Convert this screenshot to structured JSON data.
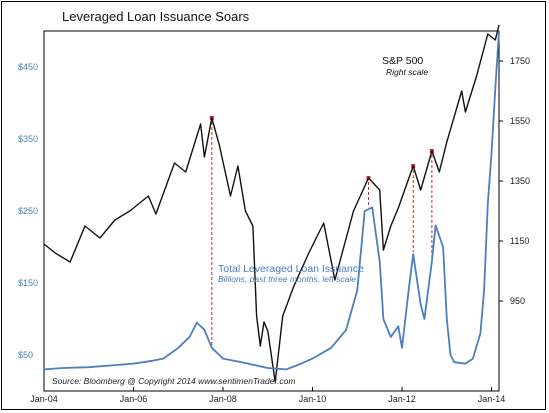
{
  "chart_data": {
    "type": "line",
    "title": "Leveraged Loan Issuance Soars",
    "x_tick_labels": [
      "Jan-04",
      "Jan-06",
      "Jan-08",
      "Jan-10",
      "Jan-12",
      "Jan-14"
    ],
    "x_range": [
      "2004-01",
      "2014-03"
    ],
    "left_axis": {
      "range": [
        0,
        500
      ],
      "ticks": [
        50,
        150,
        250,
        350,
        450
      ],
      "tick_labels": [
        "$50",
        "$150",
        "$250",
        "$350",
        "$450"
      ]
    },
    "right_axis": {
      "range": [
        650,
        1850
      ],
      "ticks": [
        950,
        1150,
        1350,
        1550,
        1750
      ],
      "tick_labels": [
        "950",
        "1150",
        "1350",
        "1550",
        "1750"
      ]
    },
    "series": [
      {
        "name": "S&P 500",
        "note": "Right scale",
        "axis": "right",
        "color": "#111111",
        "points": [
          [
            "2004-01",
            1140
          ],
          [
            "2004-04",
            1110
          ],
          [
            "2004-08",
            1080
          ],
          [
            "2004-12",
            1200
          ],
          [
            "2005-04",
            1160
          ],
          [
            "2005-08",
            1220
          ],
          [
            "2005-12",
            1250
          ],
          [
            "2006-05",
            1300
          ],
          [
            "2006-07",
            1240
          ],
          [
            "2006-12",
            1410
          ],
          [
            "2007-03",
            1380
          ],
          [
            "2007-07",
            1540
          ],
          [
            "2007-08",
            1430
          ],
          [
            "2007-10",
            1560
          ],
          [
            "2007-12",
            1470
          ],
          [
            "2008-03",
            1300
          ],
          [
            "2008-05",
            1400
          ],
          [
            "2008-07",
            1250
          ],
          [
            "2008-09",
            1200
          ],
          [
            "2008-10",
            900
          ],
          [
            "2008-11",
            800
          ],
          [
            "2008-12",
            880
          ],
          [
            "2009-01",
            850
          ],
          [
            "2009-03",
            680
          ],
          [
            "2009-05",
            900
          ],
          [
            "2009-08",
            1000
          ],
          [
            "2009-12",
            1110
          ],
          [
            "2010-04",
            1210
          ],
          [
            "2010-07",
            1020
          ],
          [
            "2010-12",
            1250
          ],
          [
            "2011-04",
            1360
          ],
          [
            "2011-07",
            1320
          ],
          [
            "2011-08",
            1120
          ],
          [
            "2011-10",
            1200
          ],
          [
            "2011-12",
            1260
          ],
          [
            "2012-04",
            1400
          ],
          [
            "2012-06",
            1320
          ],
          [
            "2012-09",
            1450
          ],
          [
            "2012-11",
            1380
          ],
          [
            "2013-01",
            1480
          ],
          [
            "2013-05",
            1650
          ],
          [
            "2013-06",
            1580
          ],
          [
            "2013-09",
            1700
          ],
          [
            "2013-12",
            1840
          ],
          [
            "2014-02",
            1820
          ],
          [
            "2014-03",
            1870
          ]
        ]
      },
      {
        "name": "Total Leveraged Loan Issuance",
        "note": "Billions, past three months, left scale",
        "axis": "left",
        "color": "#4a7fbf",
        "points": [
          [
            "2004-01",
            30
          ],
          [
            "2004-06",
            32
          ],
          [
            "2005-01",
            33
          ],
          [
            "2005-08",
            36
          ],
          [
            "2006-01",
            38
          ],
          [
            "2006-06",
            42
          ],
          [
            "2006-09",
            45
          ],
          [
            "2007-01",
            60
          ],
          [
            "2007-04",
            75
          ],
          [
            "2007-06",
            95
          ],
          [
            "2007-08",
            85
          ],
          [
            "2007-10",
            60
          ],
          [
            "2008-01",
            45
          ],
          [
            "2008-06",
            40
          ],
          [
            "2009-01",
            32
          ],
          [
            "2009-06",
            30
          ],
          [
            "2009-10",
            38
          ],
          [
            "2010-01",
            45
          ],
          [
            "2010-06",
            60
          ],
          [
            "2010-10",
            85
          ],
          [
            "2011-01",
            140
          ],
          [
            "2011-03",
            250
          ],
          [
            "2011-05",
            255
          ],
          [
            "2011-07",
            180
          ],
          [
            "2011-08",
            100
          ],
          [
            "2011-10",
            75
          ],
          [
            "2011-12",
            90
          ],
          [
            "2012-01",
            60
          ],
          [
            "2012-03",
            150
          ],
          [
            "2012-04",
            190
          ],
          [
            "2012-06",
            120
          ],
          [
            "2012-07",
            100
          ],
          [
            "2012-09",
            180
          ],
          [
            "2012-10",
            230
          ],
          [
            "2012-12",
            200
          ],
          [
            "2013-01",
            100
          ],
          [
            "2013-02",
            50
          ],
          [
            "2013-03",
            40
          ],
          [
            "2013-06",
            38
          ],
          [
            "2013-08",
            45
          ],
          [
            "2013-10",
            80
          ],
          [
            "2013-11",
            140
          ],
          [
            "2013-12",
            260
          ],
          [
            "2014-01",
            330
          ],
          [
            "2014-02",
            420
          ],
          [
            "2014-03",
            500
          ]
        ]
      }
    ],
    "peaks": [
      "2007-10",
      "2011-04",
      "2012-04",
      "2012-09"
    ],
    "grid": false,
    "source": "Source:  Bloomberg   @ Copyright 2014   www.sentimenTrader.com"
  }
}
